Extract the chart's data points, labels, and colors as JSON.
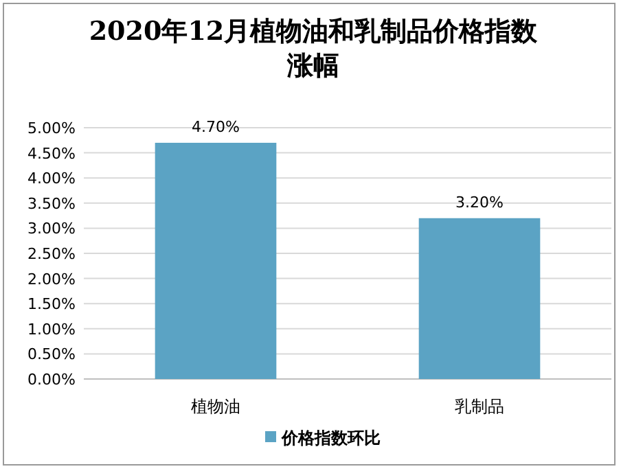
{
  "chart_data": {
    "type": "bar",
    "title": "2020年12月植物油和乳制品价格指数涨幅",
    "categories": [
      "植物油",
      "乳制品"
    ],
    "series": [
      {
        "name": "价格指数环比",
        "color": "#5ba3c4",
        "values": [
          4.7,
          3.2
        ],
        "value_labels": [
          "4.70%",
          "3.20%"
        ]
      }
    ],
    "ylim": [
      0,
      5
    ],
    "yticks": [
      {
        "value": 0,
        "label": "0.00%"
      },
      {
        "value": 0.5,
        "label": "0.50%"
      },
      {
        "value": 1,
        "label": "1.00%"
      },
      {
        "value": 1.5,
        "label": "1.50%"
      },
      {
        "value": 2,
        "label": "2.00%"
      },
      {
        "value": 2.5,
        "label": "2.50%"
      },
      {
        "value": 3,
        "label": "3.00%"
      },
      {
        "value": 3.5,
        "label": "3.50%"
      },
      {
        "value": 4,
        "label": "4.00%"
      },
      {
        "value": 4.5,
        "label": "4.50%"
      },
      {
        "value": 5,
        "label": "5.00%"
      }
    ],
    "grid": "y",
    "legend": "bottom"
  }
}
